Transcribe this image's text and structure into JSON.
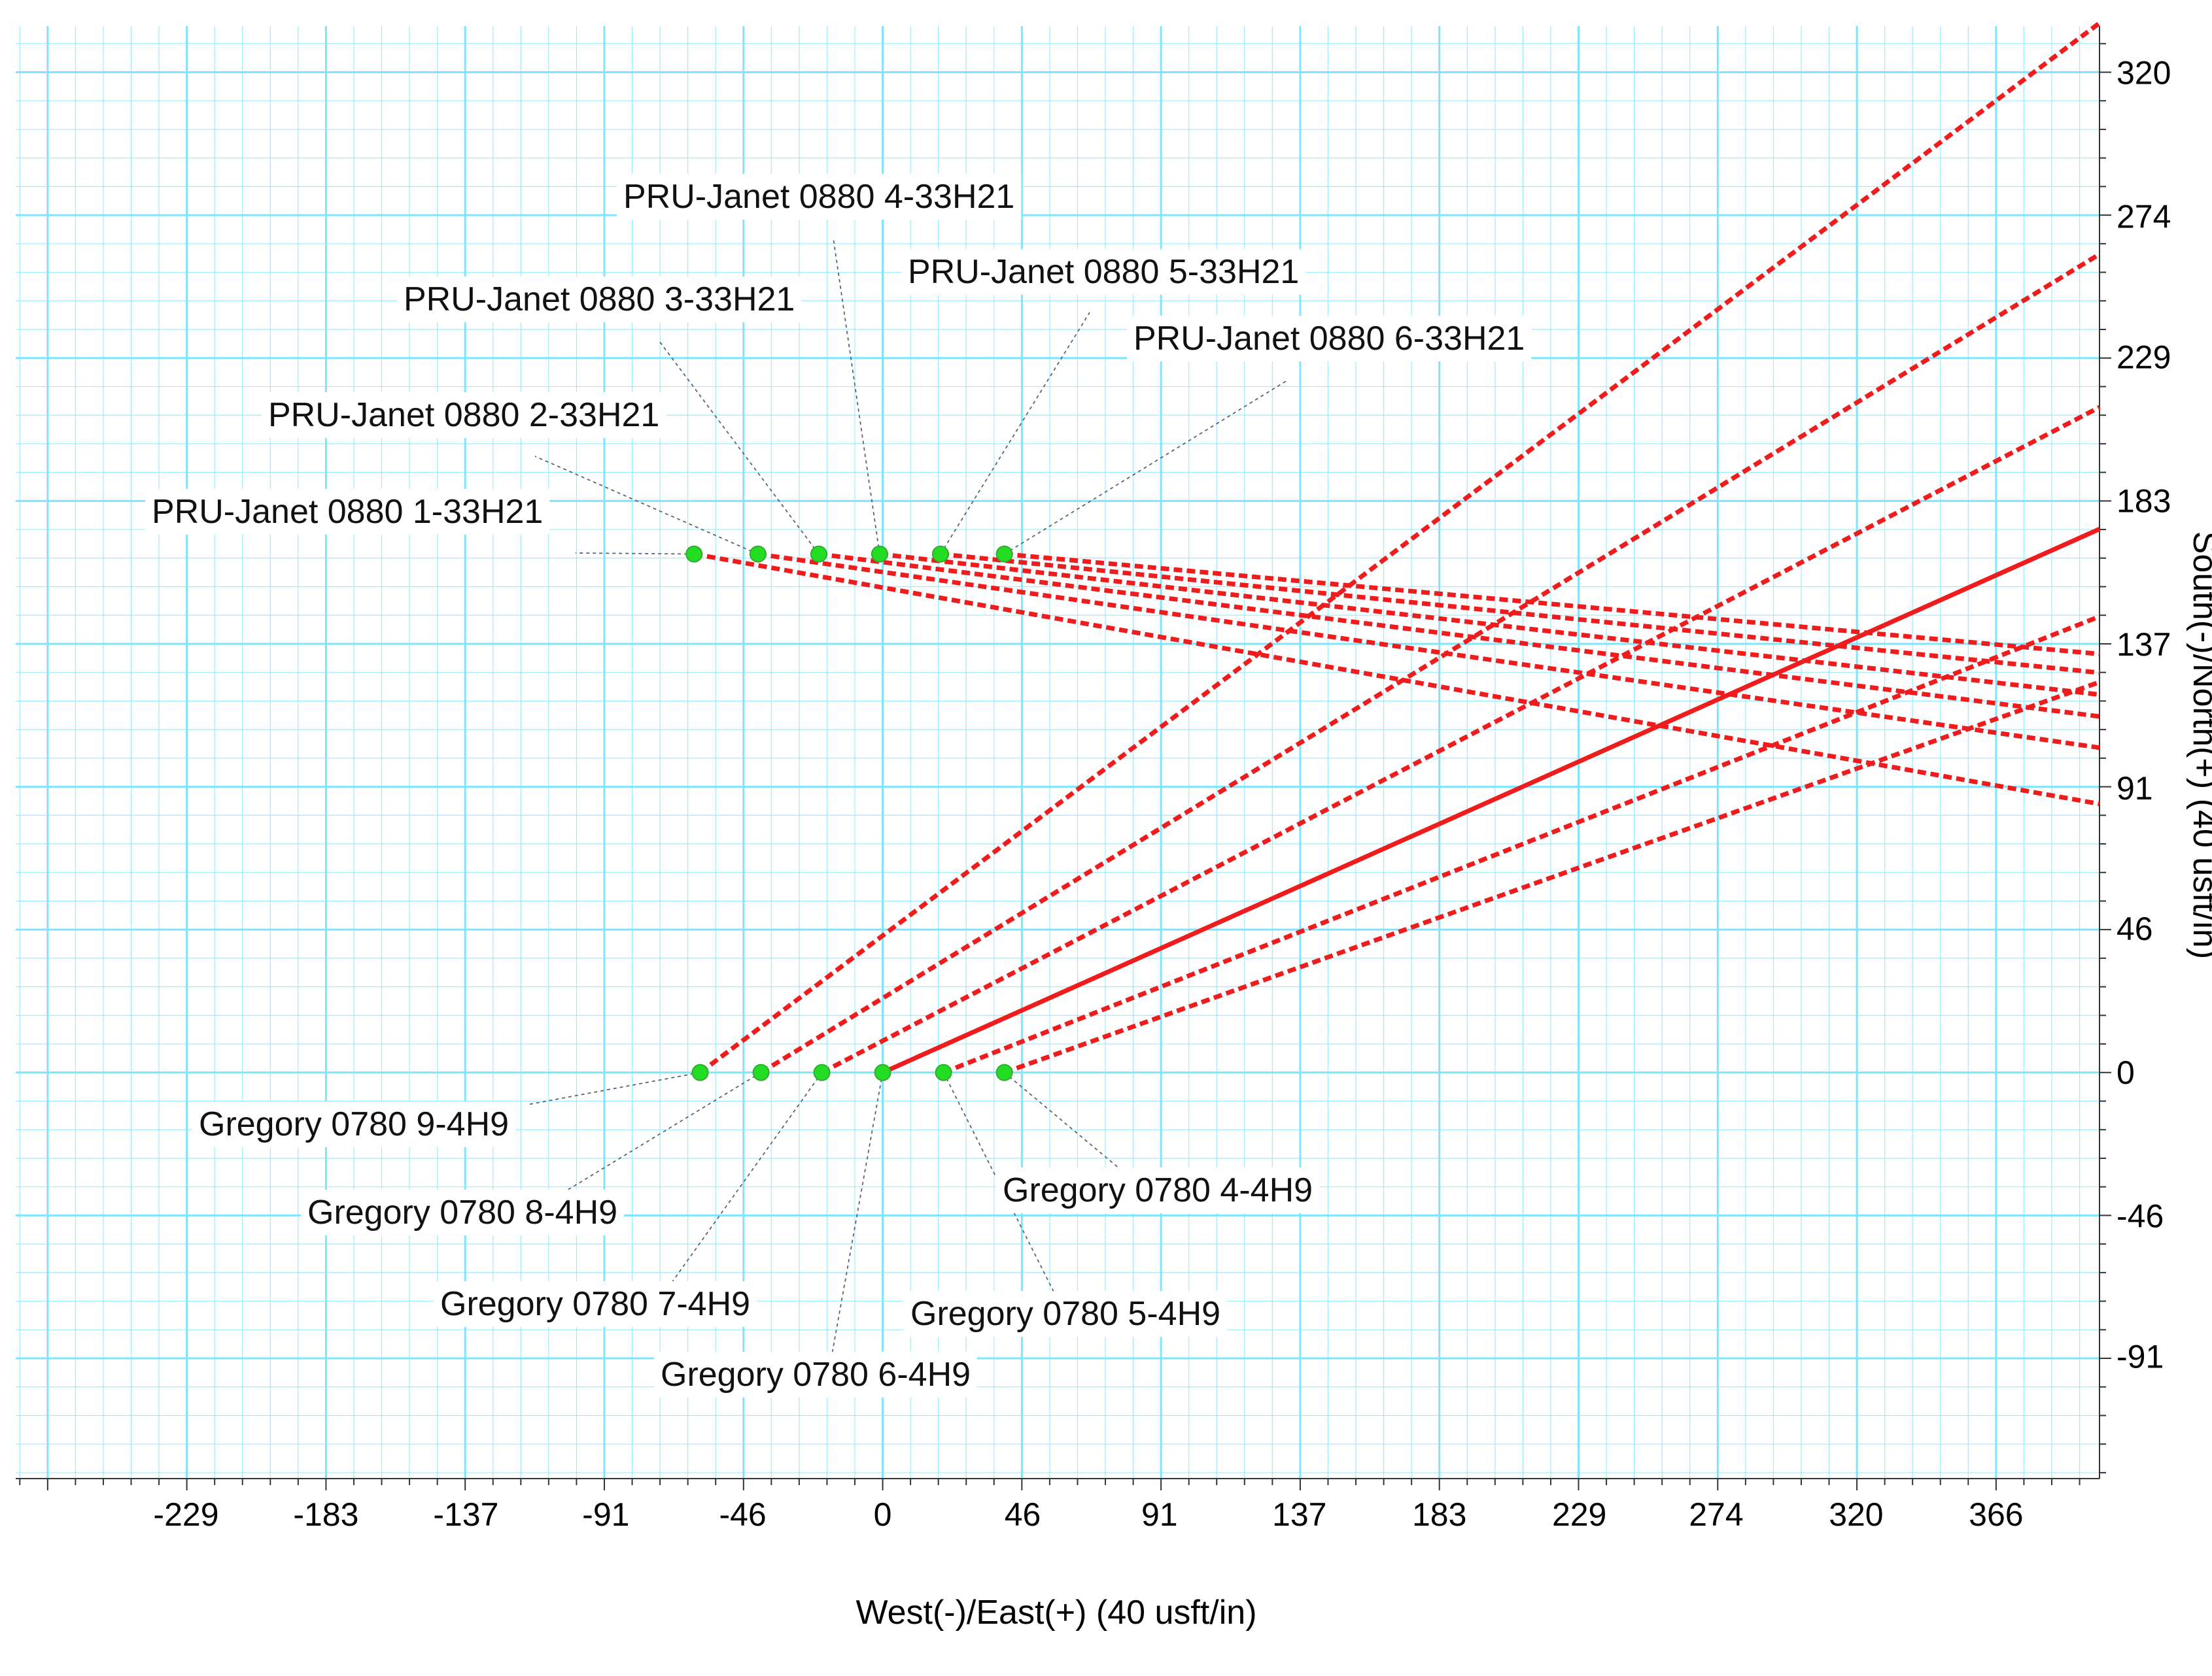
{
  "chart_data": {
    "type": "line",
    "title": "",
    "xlabel": "West(-)/East(+) (40 usft/in)",
    "ylabel": "South(-)/North(+) (40 usft/in)",
    "xlim": [
      -285,
      400
    ],
    "ylim": [
      -130,
      335
    ],
    "x_ticks": [
      "-229",
      "-183",
      "-137",
      "-91",
      "-46",
      "0",
      "46",
      "91",
      "137",
      "183",
      "229",
      "274",
      "320",
      "366"
    ],
    "y_ticks": [
      "320",
      "274",
      "229",
      "183",
      "137",
      "91",
      "46",
      "0",
      "-46",
      "-91"
    ],
    "grid": true,
    "colors": {
      "grid": "#7fe5ff",
      "path": "#ee1c1c",
      "marker": "#22dd22",
      "leader": "#556677"
    },
    "wells": [
      {
        "name": "PRU-Janet 0880 1-33H21",
        "start": [
          -62,
          166
        ],
        "end": [
          400,
          86
        ],
        "style": "dashed"
      },
      {
        "name": "PRU-Janet 0880 2-33H21",
        "start": [
          -41,
          166
        ],
        "end": [
          400,
          104
        ],
        "style": "dashed"
      },
      {
        "name": "PRU-Janet 0880 3-33H21",
        "start": [
          -21,
          166
        ],
        "end": [
          400,
          114
        ],
        "style": "dashed"
      },
      {
        "name": "PRU-Janet 0880 4-33H21",
        "start": [
          -1,
          166
        ],
        "end": [
          400,
          121
        ],
        "style": "dashed"
      },
      {
        "name": "PRU-Janet 0880 5-33H21",
        "start": [
          19,
          166
        ],
        "end": [
          400,
          128
        ],
        "style": "dashed"
      },
      {
        "name": "PRU-Janet 0880 6-33H21",
        "start": [
          40,
          166
        ],
        "end": [
          400,
          134
        ],
        "style": "dashed"
      },
      {
        "name": "Gregory 0780 9-4H9",
        "start": [
          -60,
          0
        ],
        "end": [
          400,
          336
        ],
        "style": "dashed"
      },
      {
        "name": "Gregory 0780 8-4H9",
        "start": [
          -40,
          0
        ],
        "end": [
          400,
          262
        ],
        "style": "dashed"
      },
      {
        "name": "Gregory 0780 7-4H9",
        "start": [
          -20,
          0
        ],
        "end": [
          400,
          213
        ],
        "style": "dashed"
      },
      {
        "name": "Gregory 0780 6-4H9",
        "start": [
          0,
          0
        ],
        "end": [
          400,
          174
        ],
        "style": "solid"
      },
      {
        "name": "Gregory 0780 5-4H9",
        "start": [
          20,
          0
        ],
        "end": [
          400,
          146
        ],
        "style": "dashed"
      },
      {
        "name": "Gregory 0780 4-4H9",
        "start": [
          40,
          0
        ],
        "end": [
          400,
          125
        ],
        "style": "dashed"
      }
    ]
  }
}
